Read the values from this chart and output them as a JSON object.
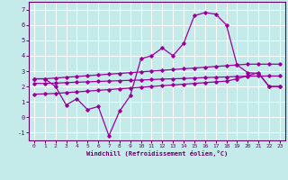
{
  "xlabel": "Windchill (Refroidissement éolien,°C)",
  "background_color": "#c5eaea",
  "grid_color": "#ffffff",
  "line_color": "#990099",
  "x_ticks": [
    0,
    1,
    2,
    3,
    4,
    5,
    6,
    7,
    8,
    9,
    10,
    11,
    12,
    13,
    14,
    15,
    16,
    17,
    18,
    19,
    20,
    21,
    22,
    23
  ],
  "ylim": [
    -1.5,
    7.5
  ],
  "xlim": [
    -0.5,
    23.5
  ],
  "yticks": [
    -1,
    0,
    1,
    2,
    3,
    4,
    5,
    6,
    7
  ],
  "series1_x": [
    0,
    1,
    2,
    3,
    4,
    5,
    6,
    7,
    8,
    9,
    10,
    11,
    12,
    13,
    14,
    15,
    16,
    17,
    18,
    19,
    20,
    21,
    22,
    23
  ],
  "series1_y": [
    2.5,
    2.5,
    2.0,
    0.8,
    1.2,
    0.5,
    0.7,
    -1.2,
    0.4,
    1.4,
    3.8,
    4.0,
    4.5,
    4.0,
    4.8,
    6.6,
    6.8,
    6.7,
    6.0,
    3.4,
    2.9,
    2.85,
    2.0,
    2.0
  ],
  "series2_x": [
    0,
    1,
    2,
    3,
    4,
    5,
    6,
    7,
    8,
    9,
    10,
    11,
    12,
    13,
    14,
    15,
    16,
    17,
    18,
    19,
    20,
    21,
    22,
    23
  ],
  "series2_y": [
    2.5,
    2.5,
    2.55,
    2.6,
    2.65,
    2.7,
    2.75,
    2.8,
    2.85,
    2.9,
    2.95,
    3.0,
    3.05,
    3.1,
    3.15,
    3.2,
    3.25,
    3.3,
    3.35,
    3.4,
    3.45,
    3.45,
    3.45,
    3.45
  ],
  "series3_x": [
    0,
    1,
    2,
    3,
    4,
    5,
    6,
    7,
    8,
    9,
    10,
    11,
    12,
    13,
    14,
    15,
    16,
    17,
    18,
    19,
    20,
    21,
    22,
    23
  ],
  "series3_y": [
    2.2,
    2.2,
    2.22,
    2.25,
    2.28,
    2.3,
    2.33,
    2.35,
    2.38,
    2.4,
    2.42,
    2.45,
    2.48,
    2.5,
    2.52,
    2.55,
    2.58,
    2.6,
    2.62,
    2.65,
    2.67,
    2.68,
    2.68,
    2.68
  ],
  "series4_x": [
    0,
    1,
    2,
    3,
    4,
    5,
    6,
    7,
    8,
    9,
    10,
    11,
    12,
    13,
    14,
    15,
    16,
    17,
    18,
    19,
    20,
    21,
    22,
    23
  ],
  "series4_y": [
    1.5,
    1.52,
    1.55,
    1.6,
    1.65,
    1.7,
    1.75,
    1.8,
    1.85,
    1.9,
    1.95,
    2.0,
    2.05,
    2.1,
    2.15,
    2.2,
    2.25,
    2.3,
    2.35,
    2.5,
    2.7,
    2.9,
    2.0,
    2.0
  ]
}
